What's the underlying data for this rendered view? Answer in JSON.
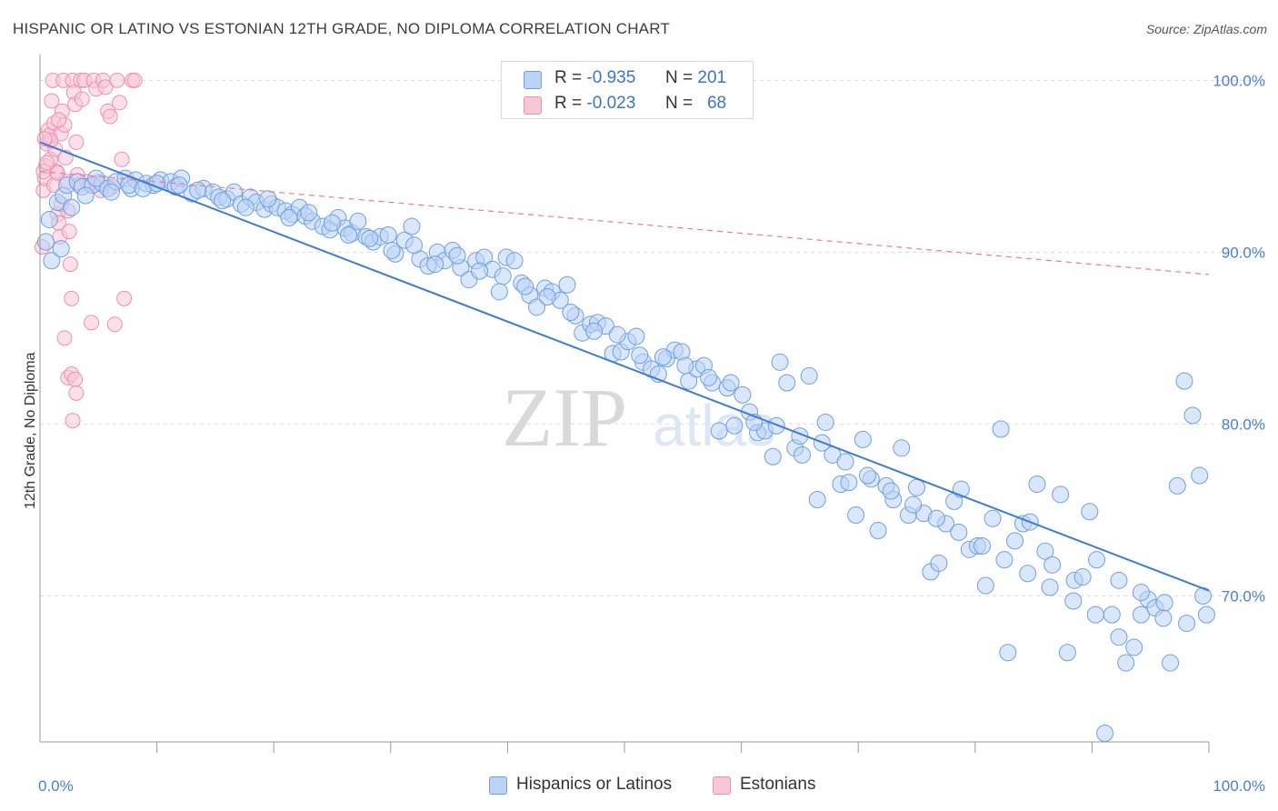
{
  "title": "HISPANIC OR LATINO VS ESTONIAN 12TH GRADE, NO DIPLOMA CORRELATION CHART",
  "source": "Source: ZipAtlas.com",
  "watermark": {
    "zip": "ZIP",
    "atlas": "atlas"
  },
  "colors": {
    "blue": "#6f9fe0",
    "blue_fill": "#bcd3f5",
    "blue_line": "#3f7ad6",
    "pink": "#ee8fb0",
    "pink_fill": "#f7c6d7",
    "pink_line": "#e87a9e",
    "grid": "#dcdcdc",
    "tick_text": "#4a7fd0"
  },
  "legend": {
    "rows": [
      {
        "r_label": "R =",
        "r_value": "-0.935",
        "n_label": "N =",
        "n_value": "201"
      },
      {
        "r_label": "R =",
        "r_value": "-0.023",
        "n_label": "N =",
        "n_value": "68"
      }
    ]
  },
  "bottom_legend": {
    "blue": "Hispanics or Latinos",
    "pink": "Estonians"
  },
  "chart_data": {
    "type": "scatter",
    "title": "HISPANIC OR LATINO VS ESTONIAN 12TH GRADE, NO DIPLOMA CORRELATION CHART",
    "xlabel": "",
    "ylabel": "12th Grade, No Diploma",
    "xlim": [
      0,
      100
    ],
    "ylim": [
      61.5,
      101.5
    ],
    "x_tick_labels": [
      "0.0%",
      "100.0%"
    ],
    "y_ticks": [
      100,
      90,
      80,
      70
    ],
    "y_tick_labels": [
      "100.0%",
      "90.0%",
      "80.0%",
      "70.0%"
    ],
    "grid": true,
    "legend_position": "top-center",
    "series": [
      {
        "name": "Hispanics or Latinos",
        "color": "#6f9fe0",
        "r": -0.935,
        "n": 201,
        "trend": {
          "x": [
            0,
            100
          ],
          "y": [
            96.4,
            70.3
          ]
        },
        "points": [
          [
            0.5,
            90.6
          ],
          [
            0.8,
            91.9
          ],
          [
            1.5,
            92.9
          ],
          [
            2.0,
            93.3
          ],
          [
            2.3,
            93.9
          ],
          [
            3.2,
            94.1
          ],
          [
            3.6,
            93.8
          ],
          [
            4.5,
            93.9
          ],
          [
            5.3,
            94.0
          ],
          [
            5.8,
            93.7
          ],
          [
            6.5,
            94.1
          ],
          [
            7.3,
            94.3
          ],
          [
            7.8,
            93.7
          ],
          [
            8.2,
            94.2
          ],
          [
            9.1,
            94.0
          ],
          [
            9.7,
            93.9
          ],
          [
            10.3,
            94.2
          ],
          [
            11.2,
            94.1
          ],
          [
            11.6,
            93.8
          ],
          [
            12.1,
            94.3
          ],
          [
            13.0,
            93.4
          ],
          [
            14.0,
            93.7
          ],
          [
            14.8,
            93.5
          ],
          [
            15.3,
            93.2
          ],
          [
            16.0,
            93.1
          ],
          [
            16.6,
            93.5
          ],
          [
            17.2,
            92.8
          ],
          [
            18.0,
            93.2
          ],
          [
            18.5,
            92.9
          ],
          [
            19.2,
            92.5
          ],
          [
            19.8,
            92.8
          ],
          [
            20.3,
            92.6
          ],
          [
            21.0,
            92.4
          ],
          [
            21.6,
            92.2
          ],
          [
            22.2,
            92.6
          ],
          [
            22.7,
            92.1
          ],
          [
            23.3,
            91.8
          ],
          [
            24.2,
            91.5
          ],
          [
            24.8,
            91.3
          ],
          [
            25.5,
            92.0
          ],
          [
            26.1,
            91.4
          ],
          [
            26.7,
            91.1
          ],
          [
            27.2,
            91.8
          ],
          [
            27.9,
            90.9
          ],
          [
            28.5,
            90.6
          ],
          [
            29.1,
            90.9
          ],
          [
            29.8,
            91.0
          ],
          [
            30.4,
            89.9
          ],
          [
            31.2,
            90.7
          ],
          [
            31.8,
            91.5
          ],
          [
            32.5,
            89.6
          ],
          [
            33.2,
            89.2
          ],
          [
            34.0,
            90.0
          ],
          [
            34.6,
            89.5
          ],
          [
            35.3,
            90.1
          ],
          [
            36.0,
            89.1
          ],
          [
            36.7,
            88.4
          ],
          [
            37.3,
            89.5
          ],
          [
            38.0,
            89.7
          ],
          [
            38.7,
            89.0
          ],
          [
            39.3,
            87.7
          ],
          [
            39.9,
            89.7
          ],
          [
            40.6,
            89.5
          ],
          [
            41.2,
            88.2
          ],
          [
            41.9,
            87.5
          ],
          [
            42.5,
            86.8
          ],
          [
            43.2,
            87.9
          ],
          [
            43.8,
            87.7
          ],
          [
            44.5,
            87.2
          ],
          [
            45.1,
            88.1
          ],
          [
            45.8,
            86.3
          ],
          [
            46.4,
            85.3
          ],
          [
            47.1,
            85.8
          ],
          [
            47.7,
            85.9
          ],
          [
            48.4,
            85.7
          ],
          [
            49.0,
            84.1
          ],
          [
            49.7,
            84.2
          ],
          [
            50.3,
            84.8
          ],
          [
            51.0,
            85.1
          ],
          [
            51.6,
            83.6
          ],
          [
            52.3,
            83.2
          ],
          [
            52.9,
            82.9
          ],
          [
            53.6,
            83.8
          ],
          [
            54.3,
            84.3
          ],
          [
            54.9,
            84.2
          ],
          [
            55.5,
            82.5
          ],
          [
            56.2,
            83.2
          ],
          [
            56.8,
            83.4
          ],
          [
            57.5,
            82.4
          ],
          [
            58.1,
            79.6
          ],
          [
            58.8,
            82.1
          ],
          [
            59.4,
            79.9
          ],
          [
            60.1,
            81.7
          ],
          [
            60.7,
            80.7
          ],
          [
            61.4,
            79.5
          ],
          [
            62.0,
            79.6
          ],
          [
            62.7,
            78.1
          ],
          [
            63.3,
            83.6
          ],
          [
            63.9,
            82.4
          ],
          [
            64.6,
            78.6
          ],
          [
            65.2,
            78.2
          ],
          [
            65.8,
            82.8
          ],
          [
            66.5,
            75.6
          ],
          [
            67.2,
            80.1
          ],
          [
            67.8,
            78.2
          ],
          [
            68.5,
            76.5
          ],
          [
            69.2,
            76.6
          ],
          [
            69.8,
            74.7
          ],
          [
            70.4,
            79.1
          ],
          [
            71.1,
            76.8
          ],
          [
            71.7,
            73.8
          ],
          [
            72.4,
            76.4
          ],
          [
            73.0,
            75.6
          ],
          [
            73.7,
            78.6
          ],
          [
            74.3,
            74.7
          ],
          [
            75.0,
            76.3
          ],
          [
            75.6,
            74.8
          ],
          [
            76.2,
            71.4
          ],
          [
            76.9,
            71.9
          ],
          [
            77.5,
            74.2
          ],
          [
            78.2,
            75.5
          ],
          [
            78.8,
            76.2
          ],
          [
            79.5,
            72.7
          ],
          [
            80.2,
            72.9
          ],
          [
            80.9,
            70.6
          ],
          [
            81.5,
            74.5
          ],
          [
            82.2,
            79.7
          ],
          [
            82.8,
            66.7
          ],
          [
            83.4,
            73.2
          ],
          [
            84.1,
            74.2
          ],
          [
            84.7,
            74.3
          ],
          [
            85.3,
            76.5
          ],
          [
            86.0,
            72.6
          ],
          [
            86.6,
            71.8
          ],
          [
            87.3,
            75.9
          ],
          [
            87.9,
            66.7
          ],
          [
            88.5,
            70.9
          ],
          [
            89.2,
            71.1
          ],
          [
            89.8,
            74.9
          ],
          [
            90.4,
            72.1
          ],
          [
            91.1,
            62.0
          ],
          [
            91.7,
            68.9
          ],
          [
            92.3,
            67.6
          ],
          [
            92.9,
            66.1
          ],
          [
            93.6,
            67.0
          ],
          [
            94.2,
            68.9
          ],
          [
            94.8,
            69.8
          ],
          [
            95.4,
            69.3
          ],
          [
            96.1,
            68.7
          ],
          [
            96.7,
            66.1
          ],
          [
            97.3,
            76.4
          ],
          [
            97.9,
            82.5
          ],
          [
            98.6,
            80.5
          ],
          [
            99.2,
            77.0
          ],
          [
            99.8,
            68.9
          ],
          [
            1.0,
            89.5
          ],
          [
            1.8,
            90.2
          ],
          [
            2.7,
            92.6
          ],
          [
            3.9,
            93.3
          ],
          [
            4.8,
            94.3
          ],
          [
            6.1,
            93.5
          ],
          [
            7.6,
            93.9
          ],
          [
            8.8,
            93.7
          ],
          [
            10.0,
            94.0
          ],
          [
            11.9,
            93.9
          ],
          [
            13.5,
            93.6
          ],
          [
            15.6,
            93.0
          ],
          [
            17.6,
            92.6
          ],
          [
            19.5,
            93.1
          ],
          [
            21.3,
            92.0
          ],
          [
            23.0,
            92.3
          ],
          [
            25.0,
            91.7
          ],
          [
            26.4,
            91.0
          ],
          [
            28.2,
            90.8
          ],
          [
            30.1,
            90.1
          ],
          [
            32.0,
            90.4
          ],
          [
            33.8,
            89.3
          ],
          [
            35.7,
            89.8
          ],
          [
            37.6,
            88.9
          ],
          [
            39.6,
            88.6
          ],
          [
            41.5,
            88.0
          ],
          [
            43.4,
            87.4
          ],
          [
            45.4,
            86.5
          ],
          [
            47.4,
            85.4
          ],
          [
            49.4,
            85.2
          ],
          [
            51.3,
            84.0
          ],
          [
            53.3,
            83.9
          ],
          [
            55.2,
            83.4
          ],
          [
            57.2,
            82.7
          ],
          [
            59.1,
            82.4
          ],
          [
            61.1,
            80.1
          ],
          [
            63.0,
            79.9
          ],
          [
            65.0,
            79.3
          ],
          [
            66.9,
            78.9
          ],
          [
            68.9,
            77.8
          ],
          [
            70.8,
            77.0
          ],
          [
            72.8,
            76.1
          ],
          [
            74.7,
            75.3
          ],
          [
            76.7,
            74.5
          ],
          [
            78.6,
            73.7
          ],
          [
            80.6,
            72.9
          ],
          [
            82.5,
            72.1
          ],
          [
            84.5,
            71.3
          ],
          [
            86.4,
            70.5
          ],
          [
            88.4,
            69.7
          ],
          [
            90.3,
            68.9
          ],
          [
            92.3,
            70.9
          ],
          [
            94.2,
            70.2
          ],
          [
            96.2,
            69.6
          ],
          [
            98.1,
            68.4
          ],
          [
            99.5,
            70.0
          ]
        ]
      },
      {
        "name": "Estonians",
        "color": "#ee8fb0",
        "r": -0.023,
        "n": 68,
        "trend": {
          "x": [
            0,
            100
          ],
          "y": [
            94.7,
            88.7
          ]
        },
        "points": [
          [
            0.2,
            90.3
          ],
          [
            0.3,
            93.6
          ],
          [
            0.4,
            94.3
          ],
          [
            0.5,
            95.0
          ],
          [
            0.6,
            96.3
          ],
          [
            0.7,
            97.1
          ],
          [
            0.8,
            96.8
          ],
          [
            0.9,
            95.4
          ],
          [
            1.0,
            98.8
          ],
          [
            1.1,
            100.0
          ],
          [
            1.2,
            97.5
          ],
          [
            1.3,
            96.0
          ],
          [
            1.4,
            94.7
          ],
          [
            1.5,
            92.2
          ],
          [
            1.6,
            91.7
          ],
          [
            1.7,
            90.9
          ],
          [
            1.8,
            96.9
          ],
          [
            1.9,
            98.2
          ],
          [
            2.0,
            100.0
          ],
          [
            2.1,
            97.4
          ],
          [
            2.2,
            95.5
          ],
          [
            2.3,
            94.1
          ],
          [
            2.4,
            92.4
          ],
          [
            2.5,
            91.2
          ],
          [
            2.6,
            89.3
          ],
          [
            2.7,
            87.3
          ],
          [
            2.8,
            100.0
          ],
          [
            2.9,
            99.3
          ],
          [
            3.0,
            98.6
          ],
          [
            3.1,
            96.4
          ],
          [
            3.2,
            94.5
          ],
          [
            3.3,
            93.9
          ],
          [
            3.5,
            100.0
          ],
          [
            3.6,
            98.9
          ],
          [
            3.8,
            100.0
          ],
          [
            4.0,
            94.1
          ],
          [
            4.2,
            93.9
          ],
          [
            4.4,
            85.9
          ],
          [
            4.6,
            100.0
          ],
          [
            4.8,
            99.5
          ],
          [
            5.0,
            94.1
          ],
          [
            5.2,
            93.6
          ],
          [
            5.4,
            100.0
          ],
          [
            5.6,
            99.6
          ],
          [
            5.8,
            98.2
          ],
          [
            6.0,
            97.9
          ],
          [
            6.2,
            93.8
          ],
          [
            6.4,
            85.8
          ],
          [
            6.6,
            100.0
          ],
          [
            6.8,
            98.7
          ],
          [
            7.0,
            95.4
          ],
          [
            7.2,
            87.3
          ],
          [
            0.3,
            94.7
          ],
          [
            0.6,
            95.2
          ],
          [
            0.9,
            96.5
          ],
          [
            1.2,
            93.9
          ],
          [
            1.5,
            94.6
          ],
          [
            1.8,
            92.8
          ],
          [
            2.1,
            85.0
          ],
          [
            2.4,
            82.7
          ],
          [
            2.7,
            82.9
          ],
          [
            3.0,
            82.6
          ],
          [
            3.1,
            81.8
          ],
          [
            2.8,
            80.2
          ],
          [
            7.9,
            100.0
          ],
          [
            8.1,
            100.0
          ],
          [
            1.6,
            97.7
          ],
          [
            0.4,
            96.6
          ]
        ]
      }
    ]
  }
}
